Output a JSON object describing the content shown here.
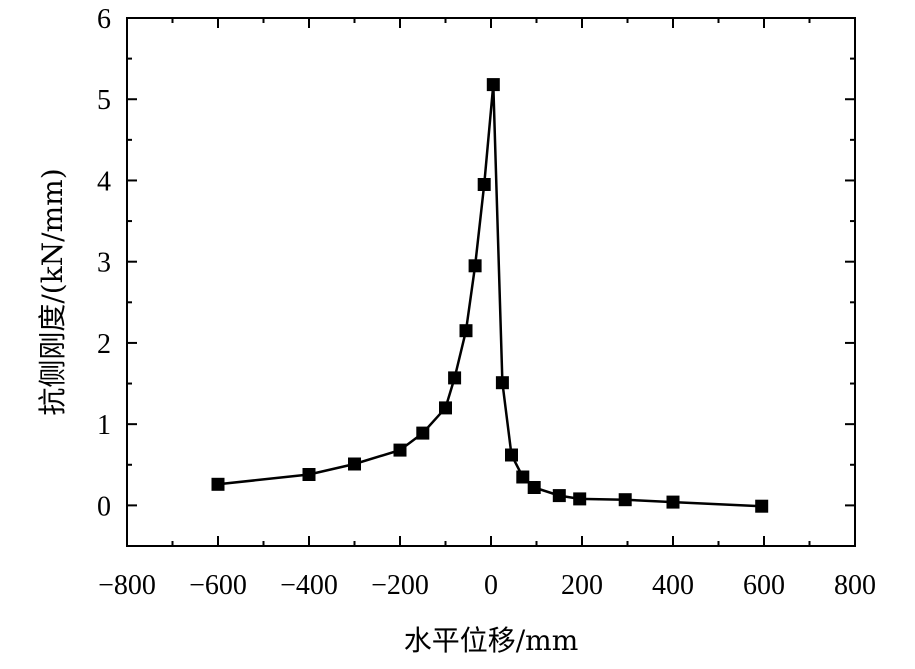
{
  "chart_data": {
    "type": "line",
    "xlabel": "水平位移/mm",
    "ylabel": "抗侧刚度/(kN/mm)",
    "xlim": [
      -800,
      800
    ],
    "ylim": [
      -0.5,
      6
    ],
    "x_ticks": [
      -800,
      -600,
      -400,
      -200,
      0,
      200,
      400,
      600,
      800
    ],
    "y_ticks": [
      0,
      1,
      2,
      3,
      4,
      5,
      6
    ],
    "x_tick_labels": [
      "−800",
      "−600",
      "−400",
      "−200",
      "0",
      "200",
      "400",
      "600",
      "800"
    ],
    "y_tick_labels": [
      "0",
      "1",
      "2",
      "3",
      "4",
      "5",
      "6"
    ],
    "grid": false,
    "legend": "none",
    "marker": "square",
    "series": [
      {
        "color": "#000000",
        "points": [
          {
            "x": -600,
            "y": 0.26
          },
          {
            "x": -400,
            "y": 0.38
          },
          {
            "x": -300,
            "y": 0.51
          },
          {
            "x": -200,
            "y": 0.68
          },
          {
            "x": -150,
            "y": 0.89
          },
          {
            "x": -100,
            "y": 1.2
          },
          {
            "x": -80,
            "y": 1.57
          },
          {
            "x": -55,
            "y": 2.15
          },
          {
            "x": -35,
            "y": 2.95
          },
          {
            "x": -15,
            "y": 3.95
          },
          {
            "x": 5,
            "y": 5.18
          },
          {
            "x": 25,
            "y": 1.51
          },
          {
            "x": 45,
            "y": 0.62
          },
          {
            "x": 70,
            "y": 0.35
          },
          {
            "x": 95,
            "y": 0.22
          },
          {
            "x": 150,
            "y": 0.12
          },
          {
            "x": 195,
            "y": 0.08
          },
          {
            "x": 295,
            "y": 0.07
          },
          {
            "x": 400,
            "y": 0.04
          },
          {
            "x": 595,
            "y": -0.01
          }
        ]
      }
    ]
  }
}
